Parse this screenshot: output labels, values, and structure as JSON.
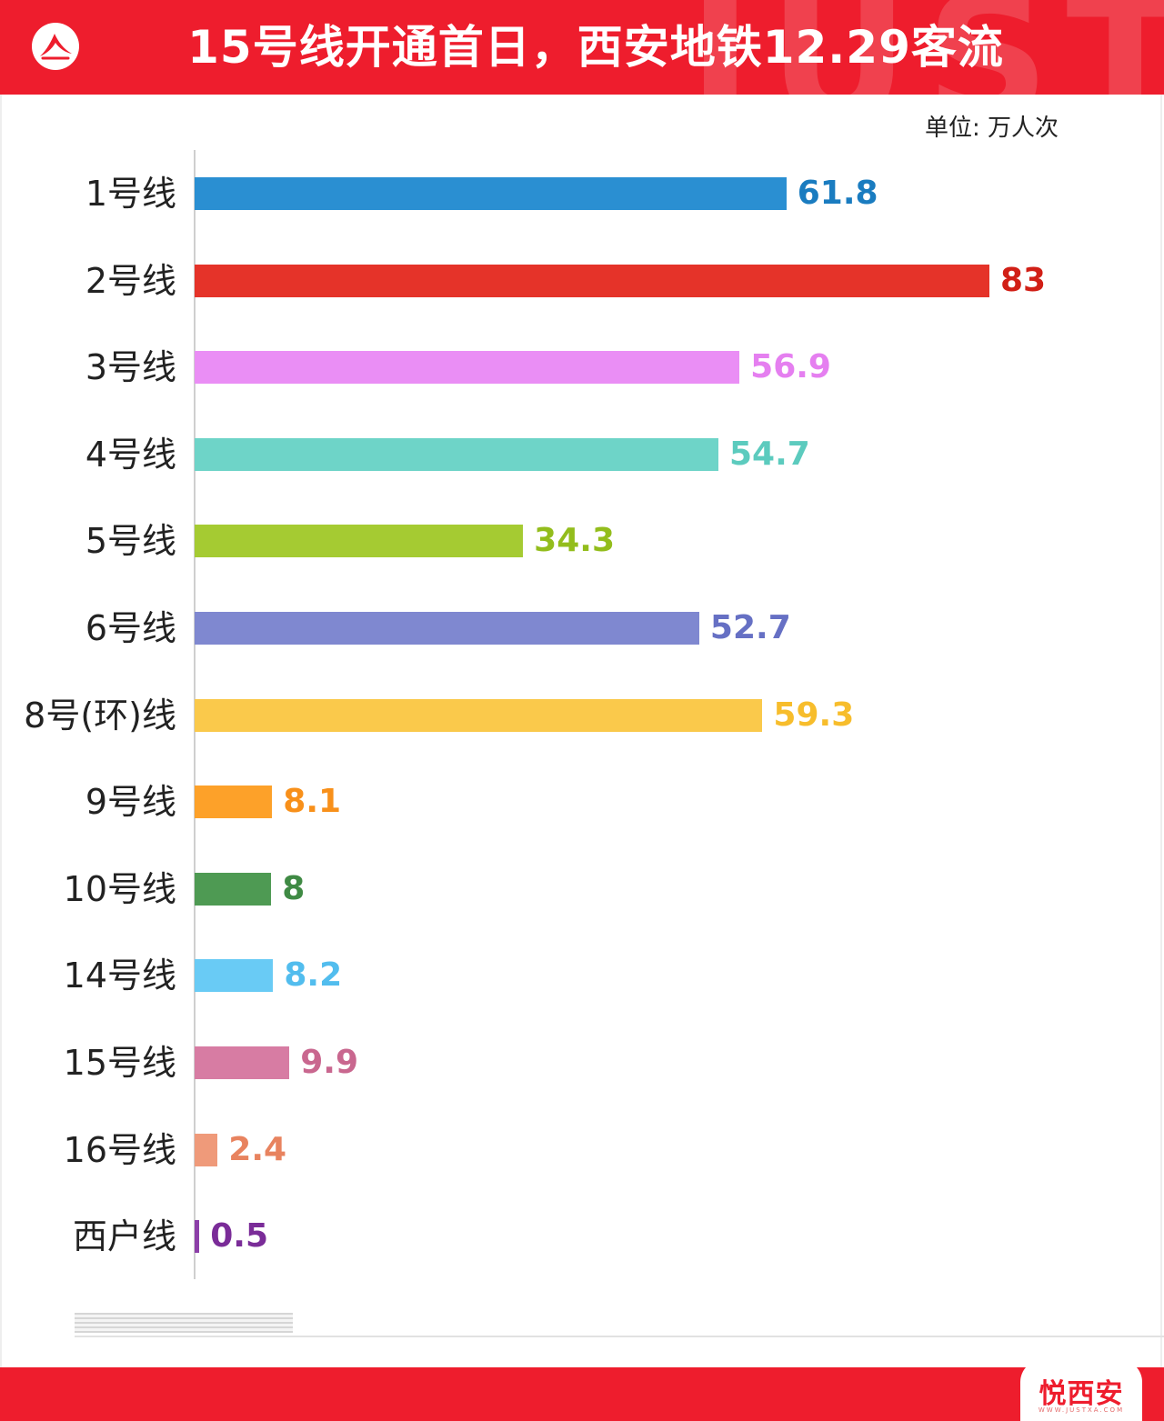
{
  "header": {
    "title": "15号线开通首日，西安地铁12.29客流",
    "watermark": "JUST",
    "logo_icon": "person-logo-icon"
  },
  "unit_label": "单位: 万人次",
  "colors": {
    "brand_red": "#ee1d2d"
  },
  "chart_data": {
    "type": "bar",
    "orientation": "horizontal",
    "title": "15号线开通首日，西安地铁12.29客流",
    "unit": "单位: 万人次",
    "xlim": [
      0,
      83
    ],
    "grid": false,
    "categories": [
      "1号线",
      "2号线",
      "3号线",
      "4号线",
      "5号线",
      "6号线",
      "8号(环)线",
      "9号线",
      "10号线",
      "14号线",
      "15号线",
      "16号线",
      "西户线"
    ],
    "values": [
      61.8,
      83,
      56.9,
      54.7,
      34.3,
      52.7,
      59.3,
      8.1,
      8,
      8.2,
      9.9,
      2.4,
      0.5
    ],
    "value_labels": [
      "61.8",
      "83",
      "56.9",
      "54.7",
      "34.3",
      "52.7",
      "59.3",
      "8.1",
      "8",
      "8.2",
      "9.9",
      "2.4",
      "0.5"
    ],
    "bar_colors": [
      "#2a8fd2",
      "#e53329",
      "#ea8ef5",
      "#6ed4c8",
      "#a5cb32",
      "#7f88d0",
      "#fac94b",
      "#fda129",
      "#4e9a53",
      "#69cbf5",
      "#d77ca3",
      "#ef9a7a",
      "#8c3fa8"
    ],
    "label_colors": [
      "#1a7cc0",
      "#d11f16",
      "#e57ff0",
      "#5ccbbe",
      "#93bd1c",
      "#6670c4",
      "#f7bd2c",
      "#f8901a",
      "#3f8a44",
      "#52bdee",
      "#c9678f",
      "#e8835f",
      "#7a2c98"
    ]
  },
  "footer": {
    "brand": "悦西安",
    "url": "WWW.JUSTXA.COM"
  }
}
